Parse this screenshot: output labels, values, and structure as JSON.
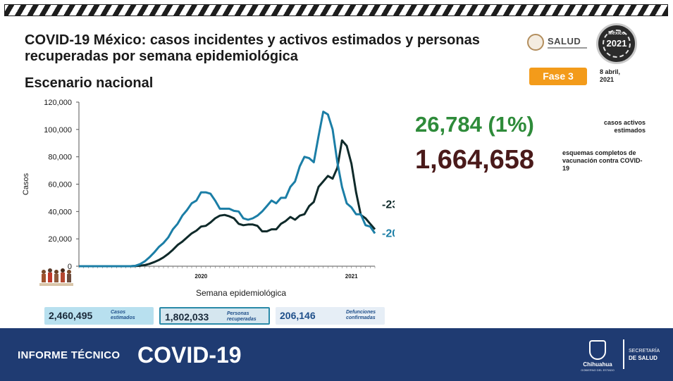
{
  "title": "COVID-19 México: casos incidentes y activos estimados y personas recuperadas por semana epidemiológica",
  "subtitle": "Escenario nacional",
  "header": {
    "salud_logo_text": "SALUD",
    "mexico_text": "México",
    "year_badge": "2021",
    "phase": "Fase 3",
    "date": "8 abril, 2021"
  },
  "stats": {
    "active_value": "26,784 (1%)",
    "active_label": "casos activos estimados",
    "vaccine_value": "1,664,658",
    "vaccine_label": "esquemas completos de vacunación contra COVID-19"
  },
  "boxes": [
    {
      "value": "2,460,495",
      "label": "Casos estimados"
    },
    {
      "value": "1,802,033",
      "label": "Personas recuperadas"
    },
    {
      "value": "206,146",
      "label": "Defunciones confirmadas"
    }
  ],
  "footer": {
    "label1": "INFORME TÉCNICO",
    "label2": "COVID-19",
    "state": "Chihuahua",
    "state_sub": "GOBIERNO DEL ESTADO",
    "sec1": "SECRETARÍA",
    "sec2": "DE SALUD"
  },
  "colors": {
    "accent_blue": "#1b7ea6",
    "dark_line": "#0f2a2a",
    "green_stat": "#2e8b3a",
    "maroon_stat": "#4a1a1a",
    "phase_orange": "#f39b1a",
    "footer_bg": "#1f3b72"
  },
  "chart_data": {
    "type": "line",
    "ylabel": "Casos",
    "xlabel": "Semana epidemiológica",
    "ylim": [
      0,
      120000
    ],
    "yticks": [
      "0",
      "20,000",
      "40,000",
      "60,000",
      "80,000",
      "100,000",
      "120,000"
    ],
    "ytick_values": [
      0,
      20000,
      40000,
      60000,
      80000,
      100000,
      120000
    ],
    "x": [
      1,
      2,
      3,
      4,
      5,
      6,
      7,
      8,
      9,
      10,
      11,
      12,
      13,
      14,
      15,
      16,
      17,
      18,
      19,
      20,
      21,
      22,
      23,
      24,
      25,
      26,
      27,
      28,
      29,
      30,
      31,
      32,
      33,
      34,
      35,
      36,
      37,
      38,
      39,
      40,
      41,
      42,
      43,
      44,
      45,
      46,
      47,
      48,
      49,
      50,
      51,
      52,
      53,
      54,
      55,
      56,
      57,
      58,
      59,
      60,
      61,
      62,
      63,
      64
    ],
    "year_labels": [
      {
        "label": "2020",
        "week": 27
      },
      {
        "label": "2021",
        "week": 59
      }
    ],
    "series": [
      {
        "name": "Casos incidentes estimados",
        "color": "#1b7ea6",
        "end_label": "-20%",
        "values": [
          0,
          0,
          0,
          0,
          0,
          0,
          0,
          0,
          0,
          0,
          0,
          0,
          300,
          1500,
          3500,
          6500,
          10000,
          14000,
          17000,
          21000,
          27000,
          31000,
          37000,
          41000,
          46000,
          48000,
          54000,
          54000,
          53000,
          48000,
          42000,
          42000,
          42000,
          40500,
          40000,
          35000,
          34000,
          35000,
          37000,
          40000,
          44000,
          48000,
          46000,
          50000,
          50000,
          58000,
          62000,
          73000,
          80000,
          79000,
          76000,
          95000,
          113000,
          111000,
          100000,
          76000,
          58000,
          46000,
          43000,
          38000,
          38000,
          30000,
          29000,
          24000
        ]
      },
      {
        "name": "Casos activos estimados",
        "color": "#0f2a2a",
        "end_label": "-23%",
        "values": [
          0,
          0,
          0,
          0,
          0,
          0,
          0,
          0,
          0,
          0,
          0,
          0,
          100,
          300,
          800,
          1700,
          3000,
          4500,
          6500,
          9000,
          12000,
          15500,
          18000,
          21000,
          24000,
          26000,
          29000,
          29500,
          32000,
          35000,
          37000,
          37500,
          36500,
          35000,
          31000,
          30000,
          30500,
          30500,
          29500,
          25500,
          25500,
          27000,
          27000,
          31000,
          33000,
          36000,
          34000,
          37000,
          38000,
          44000,
          47000,
          58000,
          62000,
          66000,
          64000,
          72000,
          92000,
          88000,
          75000,
          54000,
          37500,
          35000,
          31000,
          27000
        ]
      }
    ]
  }
}
